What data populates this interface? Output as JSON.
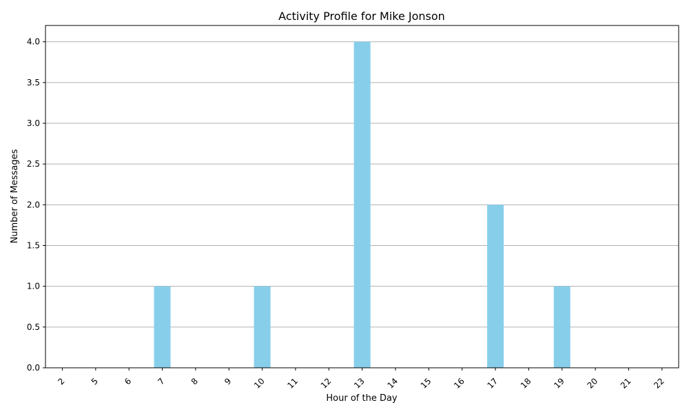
{
  "chart_data": {
    "type": "bar",
    "title": "Activity Profile for Mike Jonson",
    "xlabel": "Hour of the Day",
    "ylabel": "Number of Messages",
    "categories": [
      "2",
      "5",
      "6",
      "7",
      "8",
      "9",
      "10",
      "11",
      "12",
      "13",
      "14",
      "15",
      "16",
      "17",
      "18",
      "19",
      "20",
      "21",
      "22"
    ],
    "values": [
      0,
      0,
      0,
      1,
      0,
      0,
      1,
      0,
      0,
      4,
      0,
      0,
      0,
      2,
      0,
      1,
      0,
      0,
      0
    ],
    "ylim": [
      0,
      4.2
    ],
    "yticks": [
      "0.0",
      "0.5",
      "1.0",
      "1.5",
      "2.0",
      "2.5",
      "3.0",
      "3.5",
      "4.0"
    ],
    "grid": "horizontal",
    "bar_color": "#87CEEB",
    "grid_color": "#b0b0b0"
  }
}
